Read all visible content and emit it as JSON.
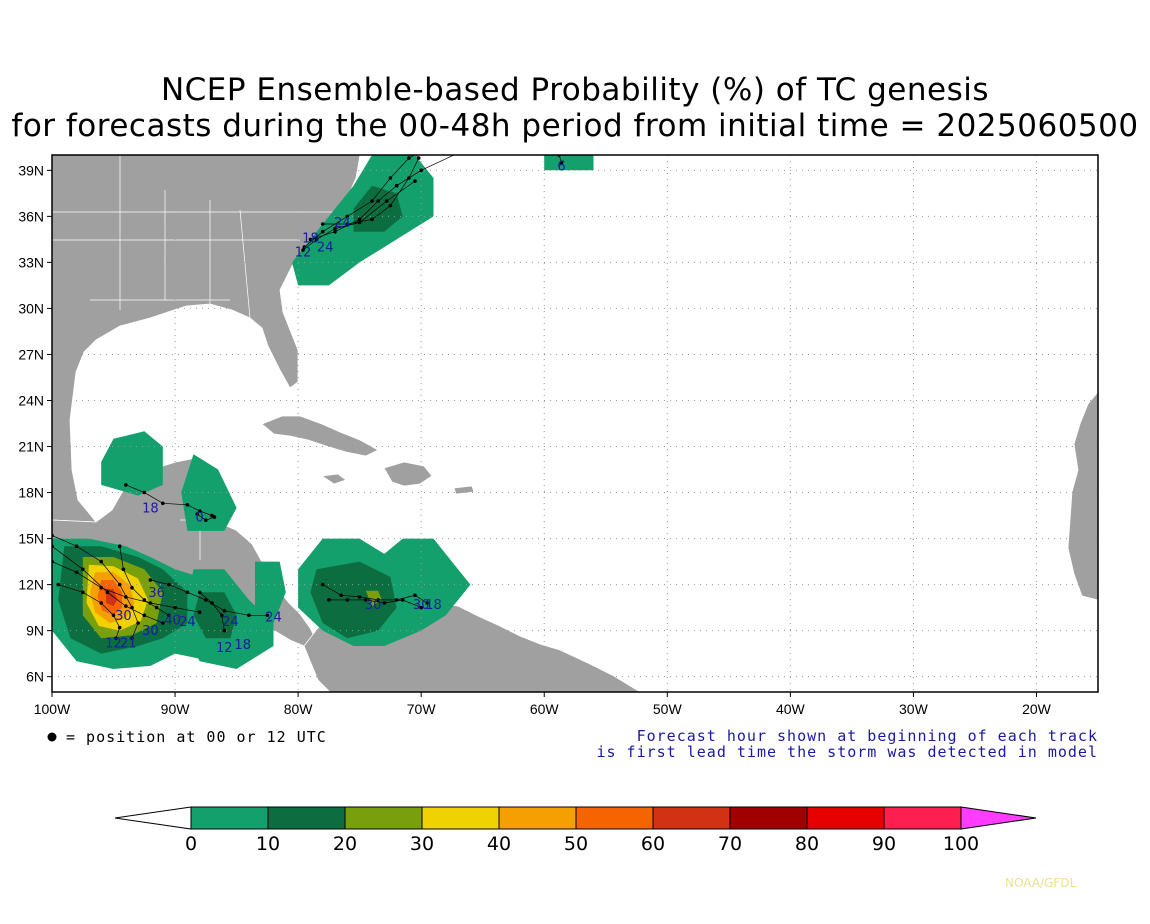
{
  "title_line1": "NCEP Ensemble-based Probability (%) of TC genesis",
  "title_line2": "for forecasts during the 00-48h period from initial time = 2025060500",
  "map": {
    "lon_range": [
      -100,
      -15
    ],
    "lat_range": [
      5,
      40
    ],
    "lat_labels": [
      "39N",
      "36N",
      "33N",
      "30N",
      "27N",
      "24N",
      "21N",
      "18N",
      "15N",
      "12N",
      "9N",
      "6N"
    ],
    "lon_labels": [
      "100W",
      "90W",
      "80W",
      "70W",
      "60W",
      "50W",
      "40W",
      "30W",
      "20W"
    ],
    "land_color": "#a0a0a0",
    "ocean_color": "#ffffff"
  },
  "legend_position_text": "= position at 00 or 12 UTC",
  "forecast_note": {
    "line1": "Forecast hour shown at beginning of each track",
    "line2": "is first lead time the storm was detected in model"
  },
  "colorbar": {
    "labels": [
      "0",
      "10",
      "20",
      "30",
      "40",
      "50",
      "60",
      "70",
      "80",
      "90",
      "100"
    ],
    "colors": [
      "#13a06c",
      "#0c6e40",
      "#79a00a",
      "#f0d200",
      "#f5a000",
      "#f56400",
      "#d23214",
      "#a00000",
      "#e60000",
      "#ff1e50"
    ],
    "low_color": "#ffffff",
    "high_color": "#ff3cff"
  },
  "track_labels": [
    {
      "text": "6",
      "lon": -58.6,
      "lat": 39.0
    },
    {
      "text": "18",
      "lon": -79.0,
      "lat": 34.3
    },
    {
      "text": "24",
      "lon": -76.4,
      "lat": 35.3
    },
    {
      "text": "12",
      "lon": -79.6,
      "lat": 33.4
    },
    {
      "text": "24",
      "lon": -77.8,
      "lat": 33.7
    },
    {
      "text": "18",
      "lon": -92.0,
      "lat": 16.7
    },
    {
      "text": "0",
      "lon": -88.0,
      "lat": 16.1
    },
    {
      "text": "36",
      "lon": -91.5,
      "lat": 11.2
    },
    {
      "text": "24",
      "lon": -89.0,
      "lat": 9.3
    },
    {
      "text": "40",
      "lon": -90.2,
      "lat": 9.4
    },
    {
      "text": "30",
      "lon": -92.0,
      "lat": 8.7
    },
    {
      "text": "24",
      "lon": -85.5,
      "lat": 9.3
    },
    {
      "text": "24",
      "lon": -82.0,
      "lat": 9.6
    },
    {
      "text": "12",
      "lon": -86.0,
      "lat": 7.6
    },
    {
      "text": "18",
      "lon": -84.5,
      "lat": 7.8
    },
    {
      "text": "30",
      "lon": -94.2,
      "lat": 9.7
    },
    {
      "text": "12",
      "lon": -95.0,
      "lat": 7.9
    },
    {
      "text": "21",
      "lon": -93.8,
      "lat": 7.9
    },
    {
      "text": "30",
      "lon": -73.9,
      "lat": 10.4
    },
    {
      "text": "30",
      "lon": -70.0,
      "lat": 10.4
    },
    {
      "text": "18",
      "lon": -69.0,
      "lat": 10.4
    }
  ],
  "credit": "NOAA/GFDL"
}
